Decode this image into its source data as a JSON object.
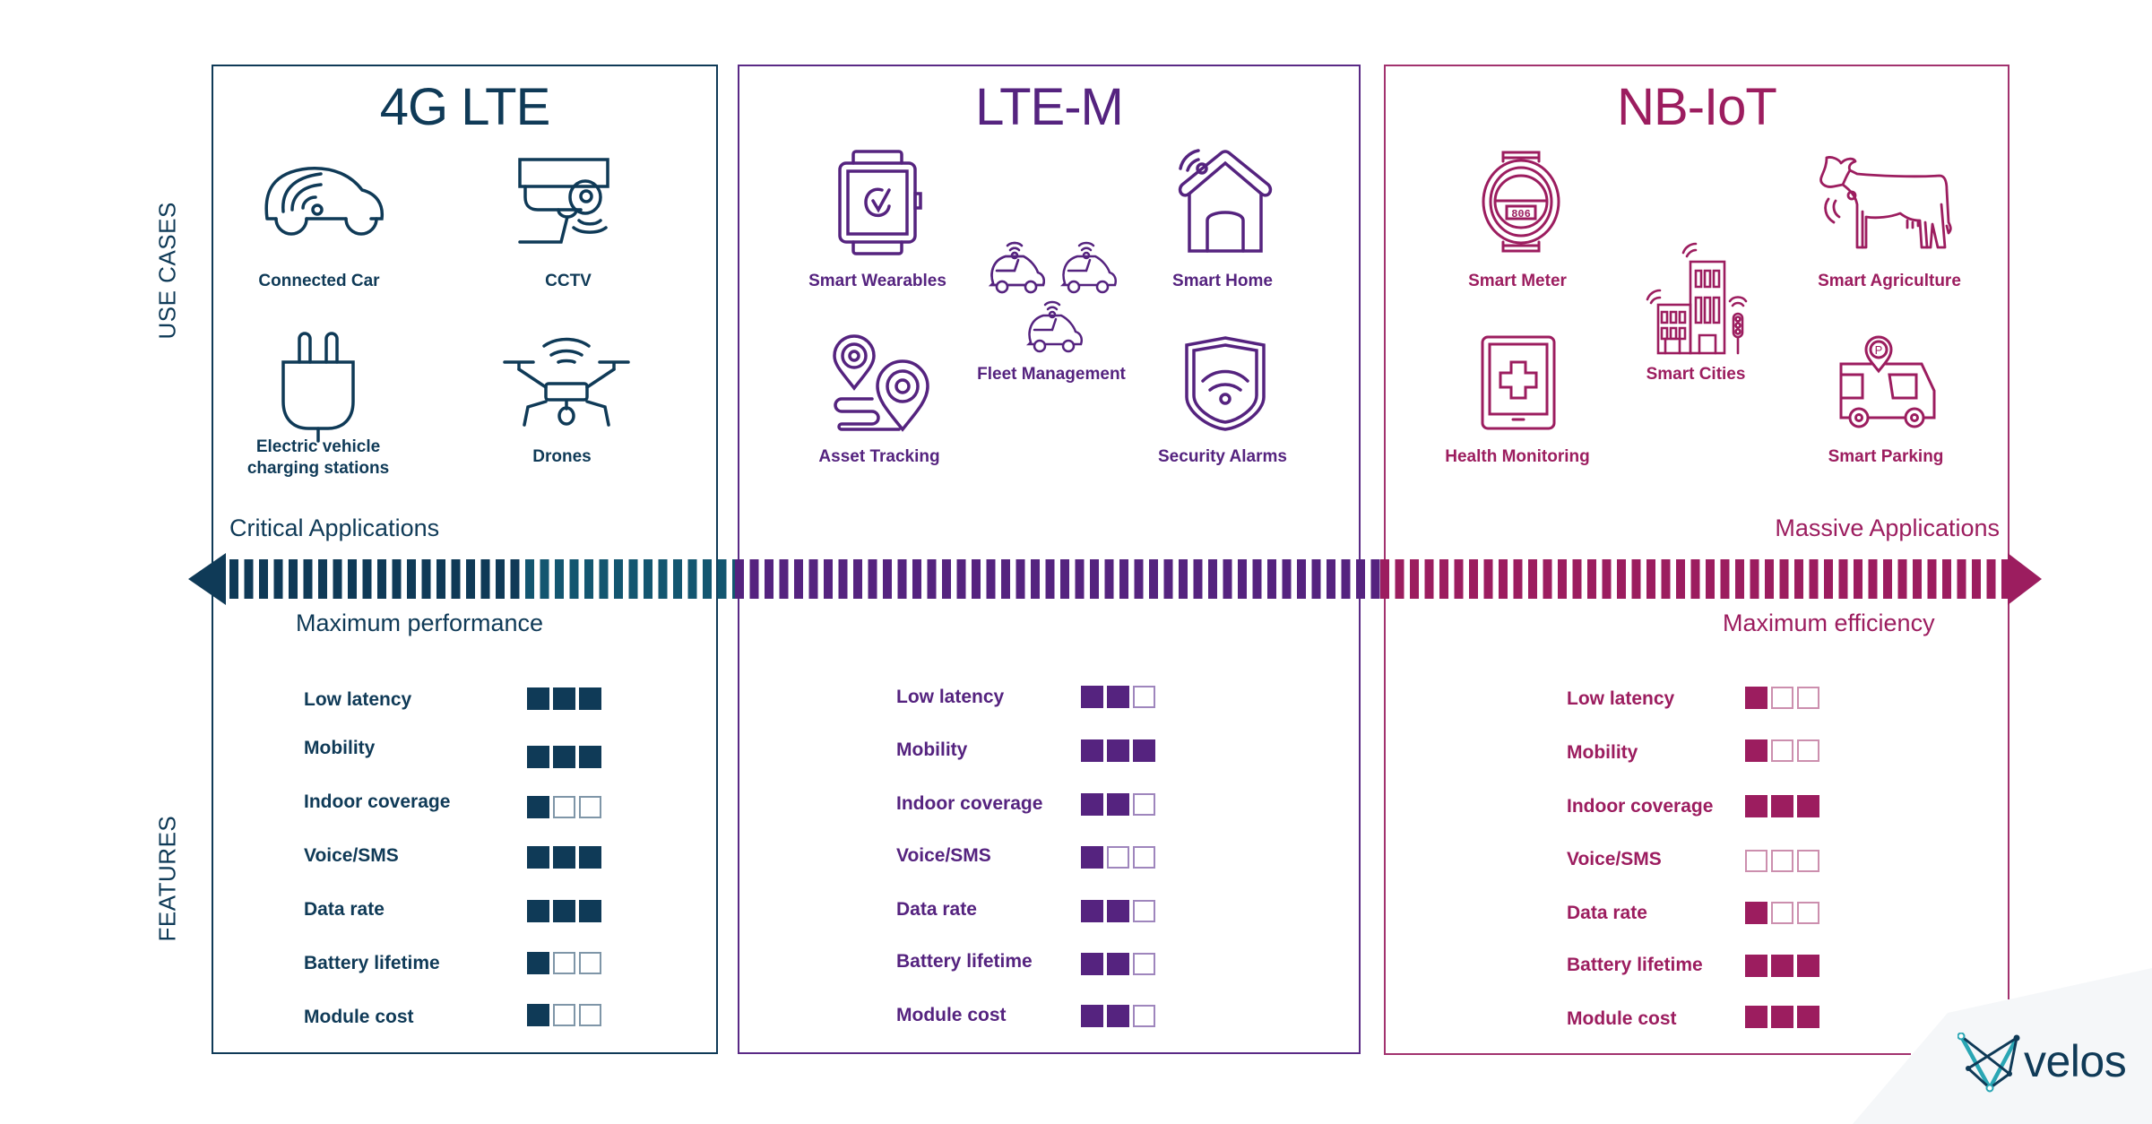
{
  "side_labels": {
    "use_cases": "USE CASES",
    "features": "FEATURES"
  },
  "colors": {
    "lte4g": "#0f3a57",
    "lte4g_teal": "#135670",
    "ltem": "#55237f",
    "nbiot": "#9c1d5f",
    "logo_teal": "#2aa6b4",
    "logo_bg": "#f5f7f9"
  },
  "columns": [
    {
      "title": "4G LTE",
      "use_cases": [
        {
          "label": "Connected Car",
          "icon": "connected-car-icon"
        },
        {
          "label": "CCTV",
          "icon": "cctv-camera-icon"
        },
        {
          "label_lines": [
            "Electric vehicle",
            "charging stations"
          ],
          "icon": "ev-plug-icon"
        },
        {
          "label": "Drones",
          "icon": "drone-icon"
        }
      ],
      "features": [
        {
          "label": "Low latency",
          "score": 3
        },
        {
          "label": "Mobility",
          "score": 3
        },
        {
          "label": "Indoor coverage",
          "score": 1
        },
        {
          "label": "Voice/SMS",
          "score": 3
        },
        {
          "label": "Data rate",
          "score": 3
        },
        {
          "label": "Battery lifetime",
          "score": 1
        },
        {
          "label": "Module cost",
          "score": 1
        }
      ]
    },
    {
      "title": "LTE-M",
      "use_cases": [
        {
          "label": "Smart Wearables",
          "icon": "smartwatch-icon"
        },
        {
          "label": "Smart Home",
          "icon": "smart-home-icon"
        },
        {
          "label": "Fleet Management",
          "icon": "fleet-cars-icon"
        },
        {
          "label": "Asset Tracking",
          "icon": "location-pins-icon"
        },
        {
          "label": "Security Alarms",
          "icon": "security-shield-icon"
        }
      ],
      "features": [
        {
          "label": "Low latency",
          "score": 2
        },
        {
          "label": "Mobility",
          "score": 3
        },
        {
          "label": "Indoor coverage",
          "score": 2
        },
        {
          "label": "Voice/SMS",
          "score": 1
        },
        {
          "label": "Data rate",
          "score": 2
        },
        {
          "label": "Battery lifetime",
          "score": 2
        },
        {
          "label": "Module cost",
          "score": 2
        }
      ]
    },
    {
      "title": "NB-IoT",
      "use_cases": [
        {
          "label": "Smart Meter",
          "icon": "smart-meter-icon",
          "meter_reading": "806"
        },
        {
          "label": "Smart Agriculture",
          "icon": "cow-icon"
        },
        {
          "label": "Smart Cities",
          "icon": "city-buildings-icon"
        },
        {
          "label": "Health Monitoring",
          "icon": "health-tablet-icon"
        },
        {
          "label": "Smart Parking",
          "icon": "parking-van-icon",
          "pin_letter": "P"
        }
      ],
      "features": [
        {
          "label": "Low latency",
          "score": 1
        },
        {
          "label": "Mobility",
          "score": 1
        },
        {
          "label": "Indoor coverage",
          "score": 3
        },
        {
          "label": "Voice/SMS",
          "score": 0
        },
        {
          "label": "Data rate",
          "score": 1
        },
        {
          "label": "Battery lifetime",
          "score": 3
        },
        {
          "label": "Module cost",
          "score": 3
        }
      ]
    }
  ],
  "spectrum": {
    "left_label": "Critical Applications",
    "right_label": "Massive Applications",
    "left_sub": "Maximum performance",
    "right_sub": "Maximum efficiency"
  },
  "logo": {
    "text": "velos"
  }
}
